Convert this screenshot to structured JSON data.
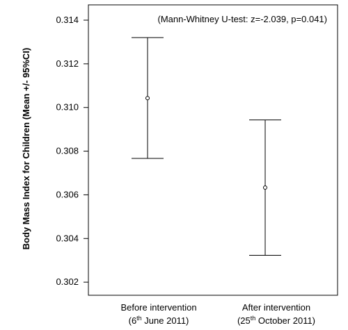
{
  "chart_data": {
    "type": "errorbar",
    "ylabel": "Body Mass Index for Children (Mean +/- 95%CI)",
    "annotation": "(Mann-Whitney U-test: z=-2.039, p=0.041)",
    "categories": [
      {
        "line1_before": "Before intervention",
        "line2_pre": "(6",
        "line2_sup": "th",
        "line2_post": " June 2011)"
      },
      {
        "line1_before": "After intervention",
        "line2_pre": "(25",
        "line2_sup": "th",
        "line2_post": " October 2011)"
      }
    ],
    "points": [
      {
        "mean": 0.31043,
        "lower": 0.30767,
        "upper": 0.3132
      },
      {
        "mean": 0.30633,
        "lower": 0.30323,
        "upper": 0.30943
      }
    ],
    "ylim": [
      0.3014,
      0.3147
    ],
    "yticks": [
      "0.302",
      "0.304",
      "0.306",
      "0.308",
      "0.310",
      "0.312",
      "0.314"
    ],
    "grid": false,
    "legend": "none"
  }
}
